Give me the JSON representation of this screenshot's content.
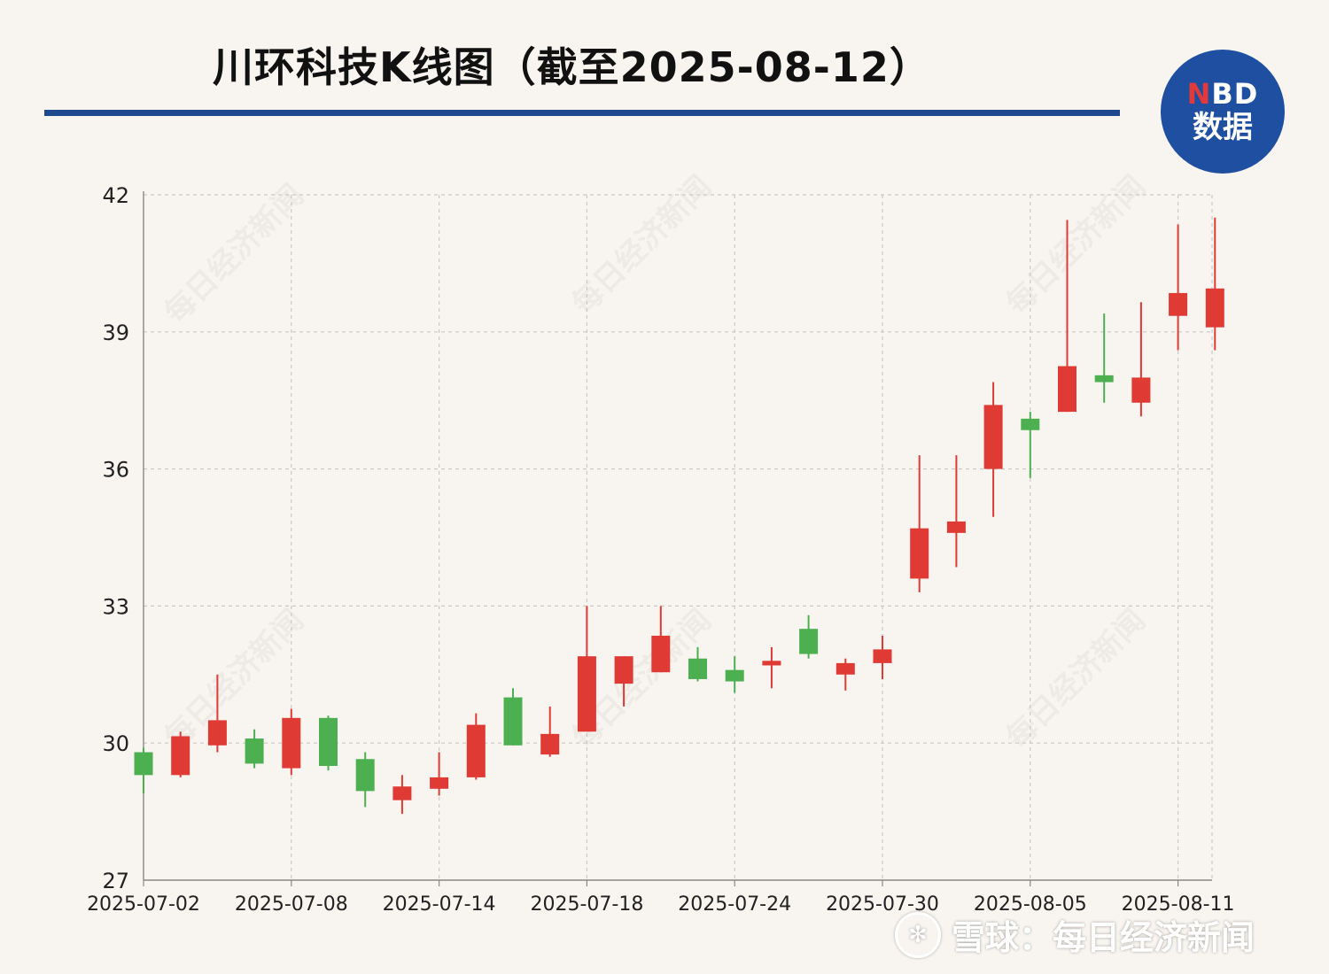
{
  "header": {
    "title": "川环科技K线图（截至2025-08-12）"
  },
  "logo": {
    "line1_n": "N",
    "line1_rest": "BD",
    "line2": "数据"
  },
  "footer": {
    "icon": "snowball-icon",
    "text": "雪球：每日经济新闻"
  },
  "watermark_text": "每日经济新闻",
  "colors": {
    "up": "#e03a35",
    "down": "#4caf50",
    "grid": "#c9c9c9",
    "accent": "#1f4a8f"
  },
  "chart_data": {
    "type": "candlestick",
    "title": "川环科技K线图（截至2025-08-12）",
    "xlabel": "",
    "ylabel": "",
    "ylim": [
      27,
      42
    ],
    "y_ticks": [
      27,
      30,
      33,
      36,
      39,
      42
    ],
    "x_tick_labels": [
      "2025-07-02",
      "2025-07-08",
      "2025-07-14",
      "2025-07-18",
      "2025-07-24",
      "2025-07-30",
      "2025-08-05",
      "2025-08-11"
    ],
    "x_tick_indices": [
      0,
      4,
      8,
      12,
      16,
      20,
      24,
      28
    ],
    "grid": true,
    "candles": [
      {
        "date": "2025-07-02",
        "open": 29.8,
        "close": 29.3,
        "high": 29.9,
        "low": 28.9
      },
      {
        "date": "2025-07-03",
        "open": 29.3,
        "close": 30.15,
        "high": 30.25,
        "low": 29.25
      },
      {
        "date": "2025-07-04",
        "open": 29.95,
        "close": 30.5,
        "high": 31.5,
        "low": 29.8
      },
      {
        "date": "2025-07-07",
        "open": 30.1,
        "close": 29.55,
        "high": 30.3,
        "low": 29.45
      },
      {
        "date": "2025-07-08",
        "open": 29.45,
        "close": 30.55,
        "high": 30.75,
        "low": 29.3
      },
      {
        "date": "2025-07-09",
        "open": 30.55,
        "close": 29.5,
        "high": 30.6,
        "low": 29.4
      },
      {
        "date": "2025-07-10",
        "open": 29.65,
        "close": 28.95,
        "high": 29.8,
        "low": 28.6
      },
      {
        "date": "2025-07-11",
        "open": 28.75,
        "close": 29.05,
        "high": 29.3,
        "low": 28.45
      },
      {
        "date": "2025-07-14",
        "open": 29.0,
        "close": 29.25,
        "high": 29.8,
        "low": 28.85
      },
      {
        "date": "2025-07-15",
        "open": 29.25,
        "close": 30.4,
        "high": 30.65,
        "low": 29.2
      },
      {
        "date": "2025-07-16",
        "open": 31.0,
        "close": 29.95,
        "high": 31.2,
        "low": 29.95
      },
      {
        "date": "2025-07-17",
        "open": 29.75,
        "close": 30.2,
        "high": 30.8,
        "low": 29.7
      },
      {
        "date": "2025-07-18",
        "open": 30.25,
        "close": 31.9,
        "high": 33.0,
        "low": 30.25
      },
      {
        "date": "2025-07-21",
        "open": 31.3,
        "close": 31.9,
        "high": 31.9,
        "low": 30.8
      },
      {
        "date": "2025-07-22",
        "open": 31.55,
        "close": 32.35,
        "high": 33.0,
        "low": 31.55
      },
      {
        "date": "2025-07-23",
        "open": 31.85,
        "close": 31.4,
        "high": 32.1,
        "low": 31.35
      },
      {
        "date": "2025-07-24",
        "open": 31.6,
        "close": 31.35,
        "high": 31.9,
        "low": 31.1
      },
      {
        "date": "2025-07-25",
        "open": 31.7,
        "close": 31.8,
        "high": 32.1,
        "low": 31.2
      },
      {
        "date": "2025-07-28",
        "open": 32.5,
        "close": 31.95,
        "high": 32.8,
        "low": 31.85
      },
      {
        "date": "2025-07-29",
        "open": 31.5,
        "close": 31.75,
        "high": 31.85,
        "low": 31.15
      },
      {
        "date": "2025-07-30",
        "open": 31.75,
        "close": 32.05,
        "high": 32.35,
        "low": 31.4
      },
      {
        "date": "2025-07-31",
        "open": 33.6,
        "close": 34.7,
        "high": 36.3,
        "low": 33.3
      },
      {
        "date": "2025-08-01",
        "open": 34.6,
        "close": 34.85,
        "high": 36.3,
        "low": 33.85
      },
      {
        "date": "2025-08-04",
        "open": 36.0,
        "close": 37.4,
        "high": 37.9,
        "low": 34.95
      },
      {
        "date": "2025-08-05",
        "open": 37.1,
        "close": 36.85,
        "high": 37.25,
        "low": 35.8
      },
      {
        "date": "2025-08-06",
        "open": 37.25,
        "close": 38.25,
        "high": 41.45,
        "low": 37.25
      },
      {
        "date": "2025-08-07",
        "open": 38.05,
        "close": 37.9,
        "high": 39.4,
        "low": 37.45
      },
      {
        "date": "2025-08-08",
        "open": 37.45,
        "close": 38.0,
        "high": 39.65,
        "low": 37.15
      },
      {
        "date": "2025-08-11",
        "open": 39.35,
        "close": 39.85,
        "high": 41.35,
        "low": 38.6
      },
      {
        "date": "2025-08-12",
        "open": 39.1,
        "close": 39.95,
        "high": 41.5,
        "low": 38.6
      }
    ]
  }
}
